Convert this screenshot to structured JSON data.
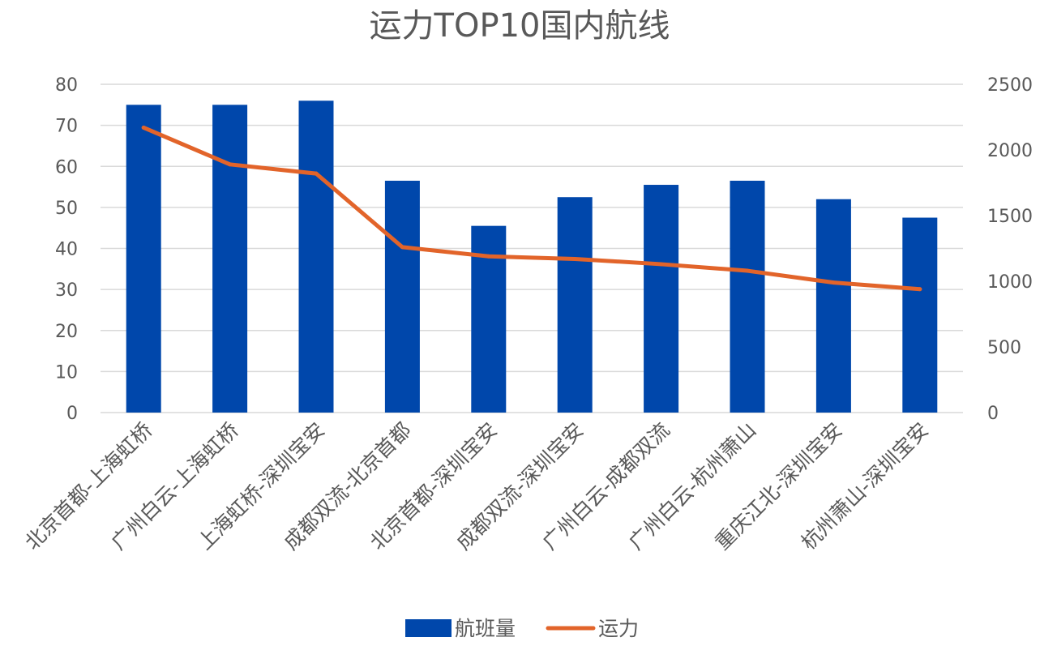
{
  "chart_data": {
    "type": "bar",
    "title": "运力TOP10国内航线",
    "categories": [
      "北京首都-上海虹桥",
      "广州白云-上海虹桥",
      "上海虹桥-深圳宝安",
      "成都双流-北京首都",
      "北京首都-深圳宝安",
      "成都双流-深圳宝安",
      "广州白云-成都双流",
      "广州白云-杭州萧山",
      "重庆江北-深圳宝安",
      "杭州萧山-深圳宝安"
    ],
    "series": [
      {
        "name": "航班量",
        "type": "bar",
        "axis": "left",
        "color": "#0047AB",
        "values": [
          75,
          75,
          76,
          56.5,
          45.5,
          52.5,
          55.5,
          56.5,
          52,
          47.5
        ]
      },
      {
        "name": "运力",
        "type": "line",
        "axis": "right",
        "color": "#E2642A",
        "values": [
          2170,
          1890,
          1820,
          1260,
          1190,
          1170,
          1130,
          1080,
          990,
          940
        ]
      }
    ],
    "y_left": {
      "ylim": [
        0,
        80
      ],
      "ticks": [
        0,
        10,
        20,
        30,
        40,
        50,
        60,
        70,
        80
      ]
    },
    "y_right": {
      "ylim": [
        0,
        2500
      ],
      "ticks": [
        0,
        500,
        1000,
        1500,
        2000,
        2500
      ]
    },
    "grid": true,
    "legend_position": "bottom"
  }
}
